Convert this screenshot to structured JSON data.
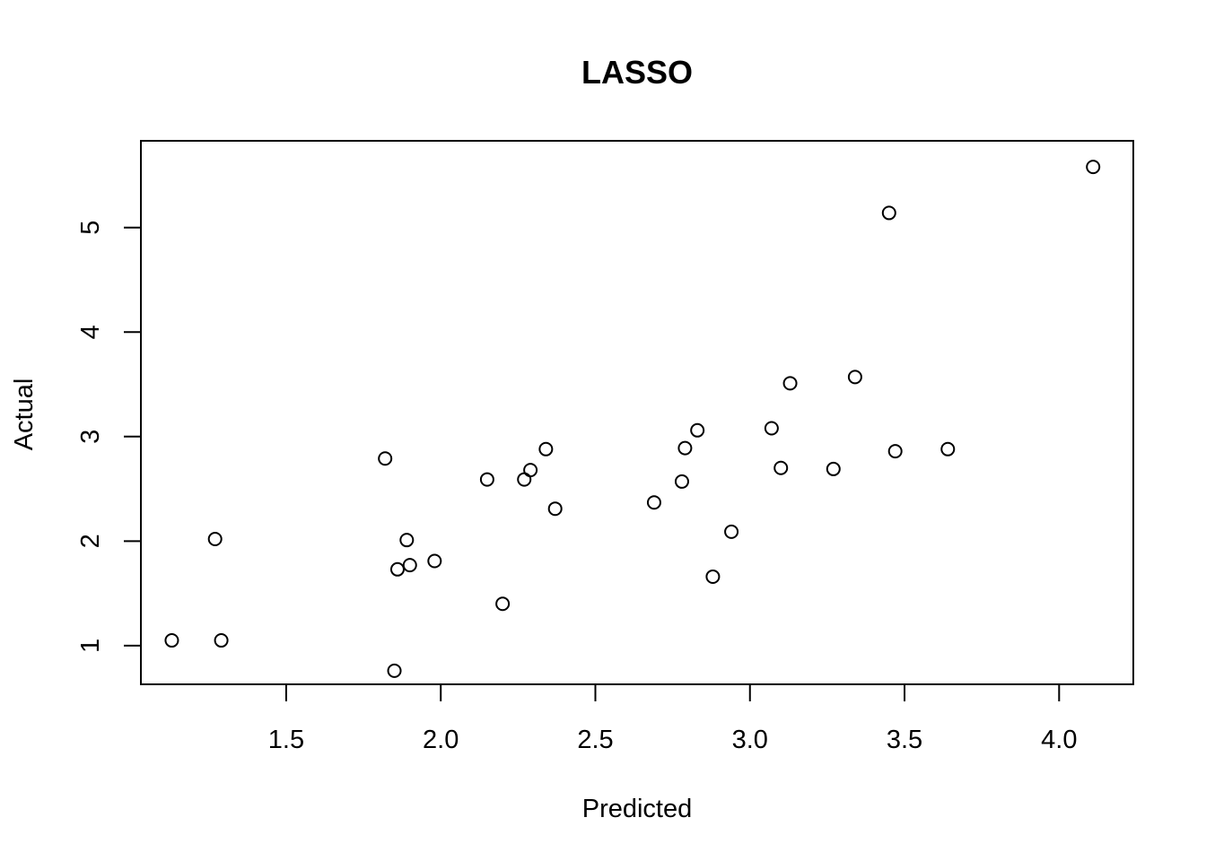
{
  "chart_data": {
    "type": "scatter",
    "title": "LASSO",
    "xlabel": "Predicted",
    "ylabel": "Actual",
    "xlim": [
      1.03,
      4.24
    ],
    "ylim": [
      0.63,
      5.83
    ],
    "xticks": [
      "1.5",
      "2.0",
      "2.5",
      "3.0",
      "3.5",
      "4.0"
    ],
    "yticks": [
      "1",
      "2",
      "3",
      "4",
      "5"
    ],
    "grid": false,
    "marker": "open-circle",
    "colors": {
      "marker_stroke": "#000000",
      "axis": "#000000"
    },
    "points": [
      {
        "x": 1.13,
        "y": 1.05
      },
      {
        "x": 1.27,
        "y": 2.02
      },
      {
        "x": 1.29,
        "y": 1.05
      },
      {
        "x": 1.82,
        "y": 2.79
      },
      {
        "x": 1.85,
        "y": 0.76
      },
      {
        "x": 1.86,
        "y": 1.73
      },
      {
        "x": 1.89,
        "y": 2.01
      },
      {
        "x": 1.9,
        "y": 1.77
      },
      {
        "x": 1.98,
        "y": 1.81
      },
      {
        "x": 2.15,
        "y": 2.59
      },
      {
        "x": 2.2,
        "y": 1.4
      },
      {
        "x": 2.27,
        "y": 2.59
      },
      {
        "x": 2.29,
        "y": 2.68
      },
      {
        "x": 2.34,
        "y": 2.88
      },
      {
        "x": 2.37,
        "y": 2.31
      },
      {
        "x": 2.69,
        "y": 2.37
      },
      {
        "x": 2.78,
        "y": 2.57
      },
      {
        "x": 2.79,
        "y": 2.89
      },
      {
        "x": 2.83,
        "y": 3.06
      },
      {
        "x": 2.88,
        "y": 1.66
      },
      {
        "x": 2.94,
        "y": 2.09
      },
      {
        "x": 3.07,
        "y": 3.08
      },
      {
        "x": 3.1,
        "y": 2.7
      },
      {
        "x": 3.13,
        "y": 3.51
      },
      {
        "x": 3.27,
        "y": 2.69
      },
      {
        "x": 3.34,
        "y": 3.57
      },
      {
        "x": 3.45,
        "y": 5.14
      },
      {
        "x": 3.47,
        "y": 2.86
      },
      {
        "x": 3.64,
        "y": 2.88
      },
      {
        "x": 4.11,
        "y": 5.58
      }
    ]
  }
}
